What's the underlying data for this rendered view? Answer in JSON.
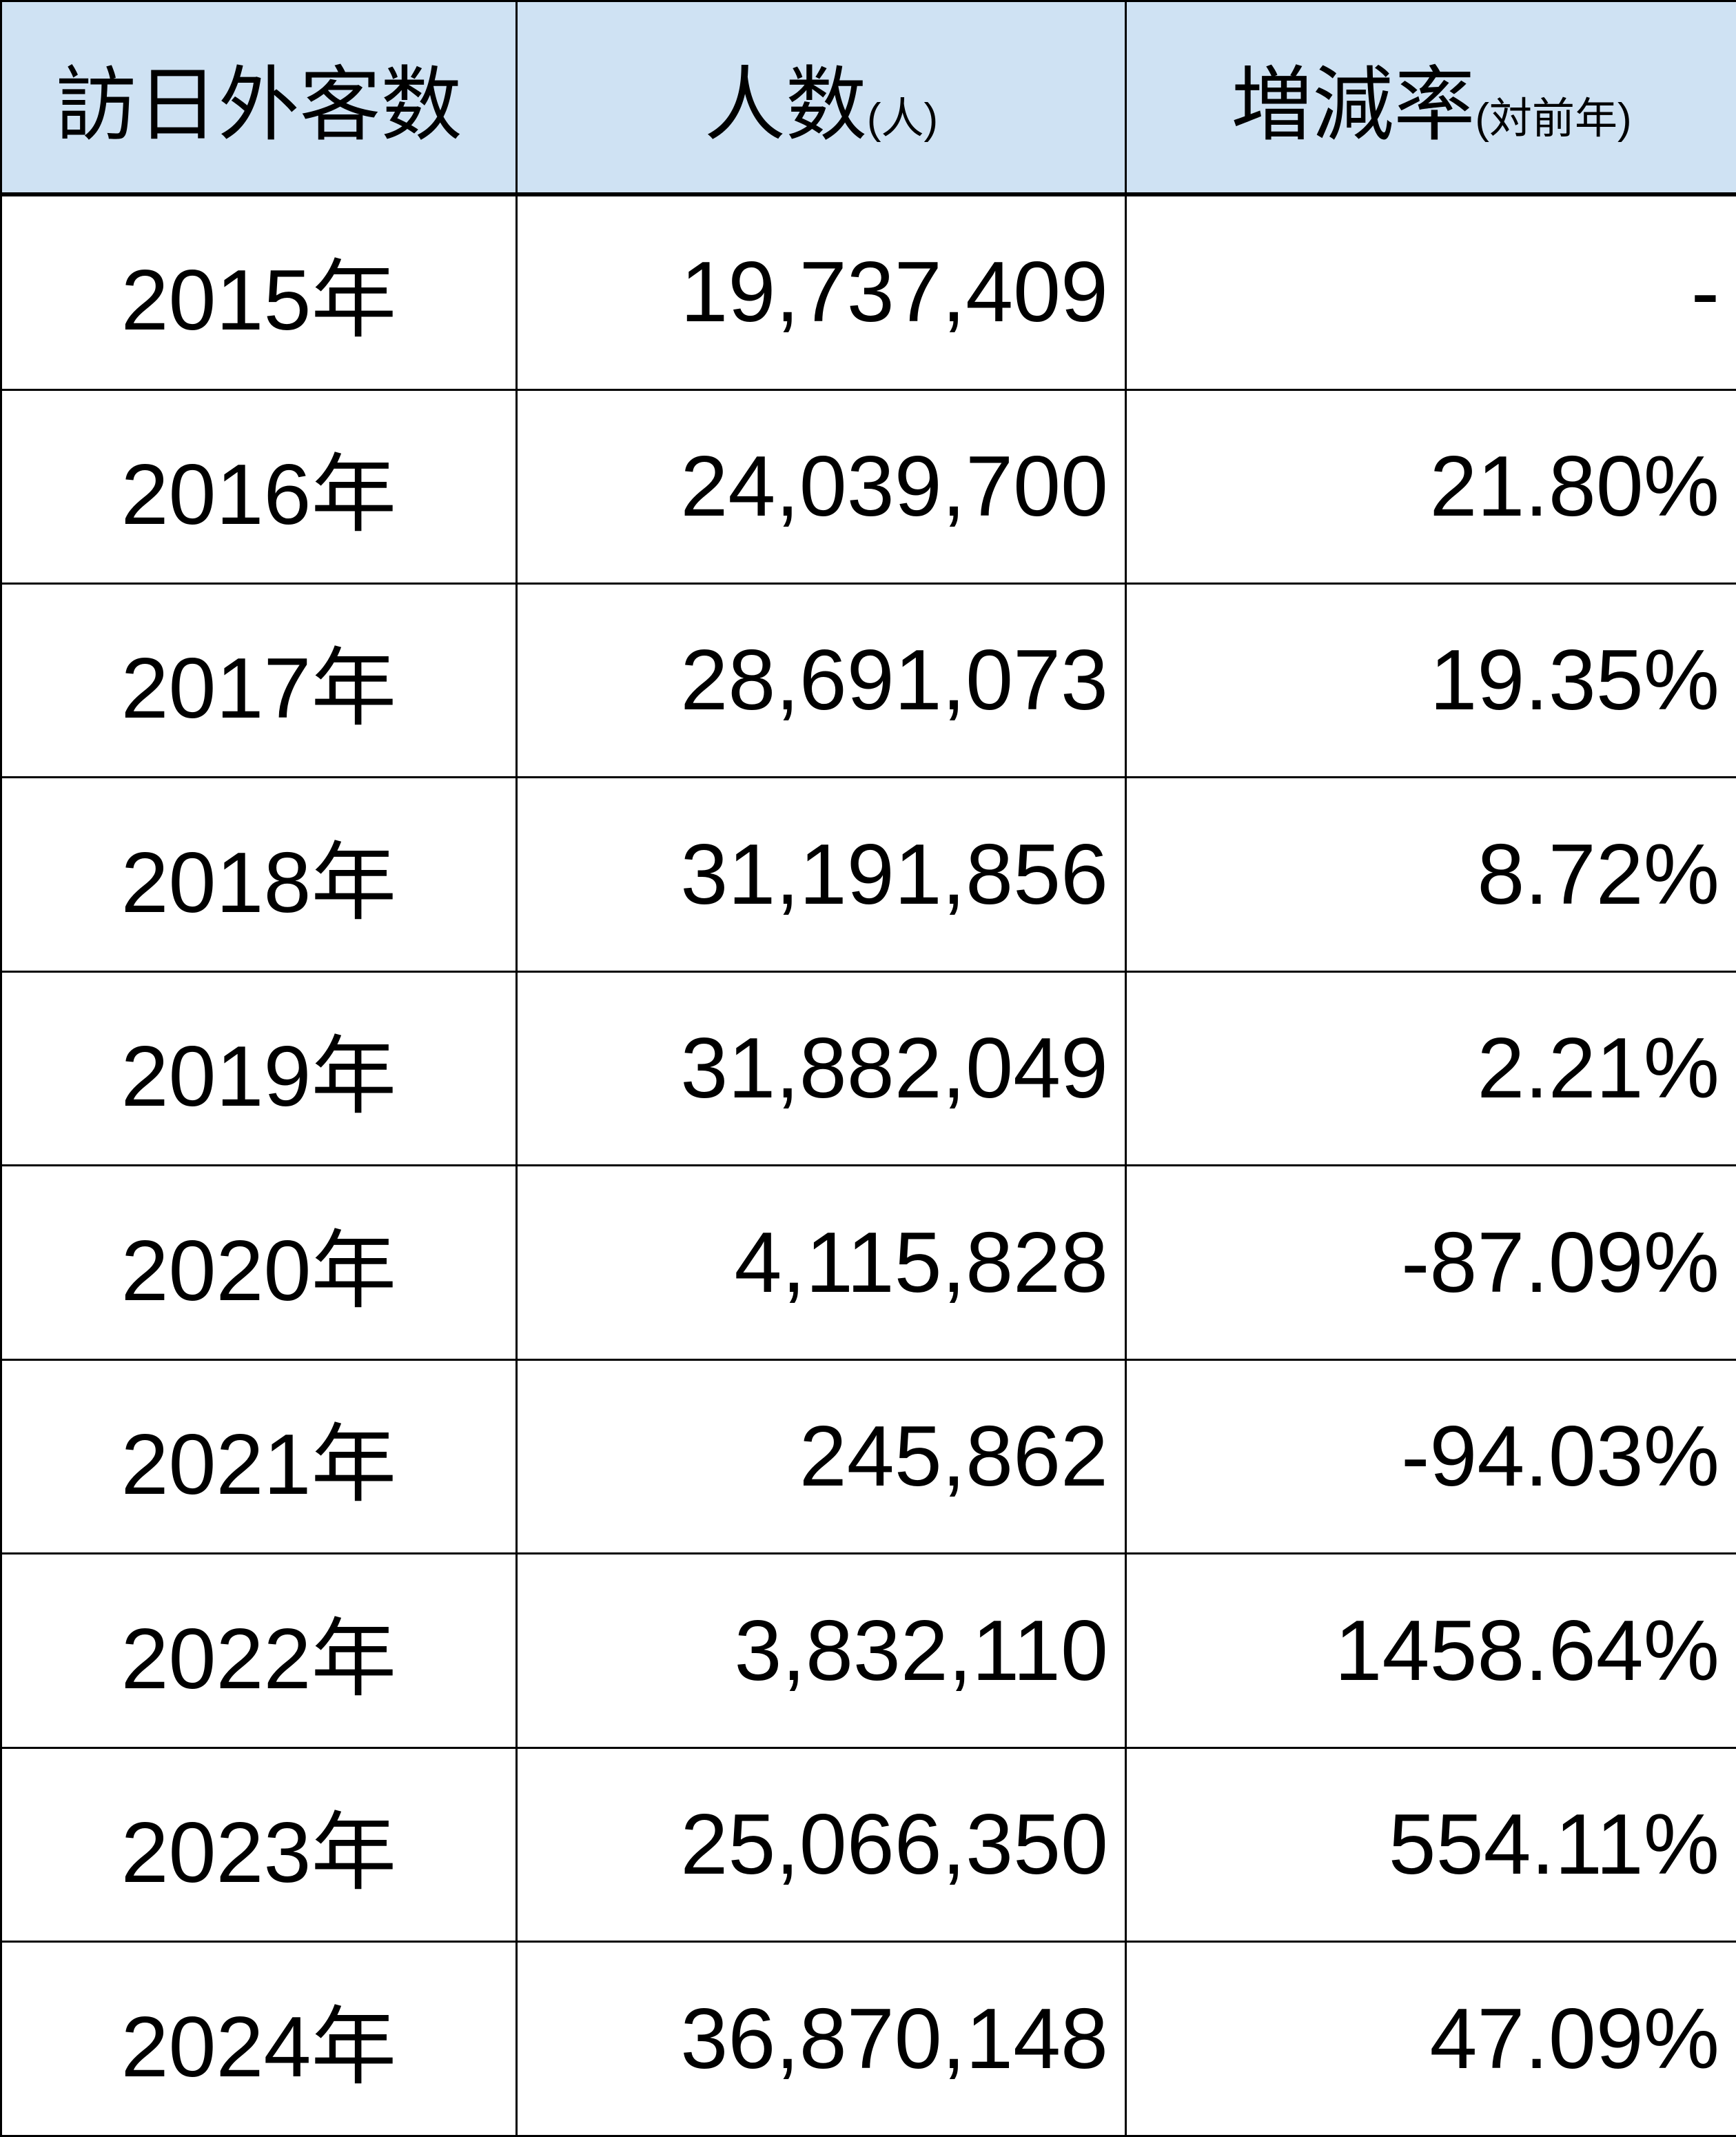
{
  "header": {
    "col1": "訪日外客数",
    "col2": "人数",
    "col2_unit": "(人)",
    "col3": "増減率",
    "col3_unit": "(対前年)",
    "background": "#cfe2f3"
  },
  "rows": [
    {
      "year": "2015年",
      "count": "19,737,409",
      "rate": "-"
    },
    {
      "year": "2016年",
      "count": "24,039,700",
      "rate": "21.80%"
    },
    {
      "year": "2017年",
      "count": "28,691,073",
      "rate": "19.35%"
    },
    {
      "year": "2018年",
      "count": "31,191,856",
      "rate": "8.72%"
    },
    {
      "year": "2019年",
      "count": "31,882,049",
      "rate": "2.21%"
    },
    {
      "year": "2020年",
      "count": "4,115,828",
      "rate": "-87.09%"
    },
    {
      "year": "2021年",
      "count": "245,862",
      "rate": "-94.03%"
    },
    {
      "year": "2022年",
      "count": "3,832,110",
      "rate": "1458.64%"
    },
    {
      "year": "2023年",
      "count": "25,066,350",
      "rate": "554.11%"
    },
    {
      "year": "2024年",
      "count": "36,870,148",
      "rate": "47.09%"
    }
  ]
}
